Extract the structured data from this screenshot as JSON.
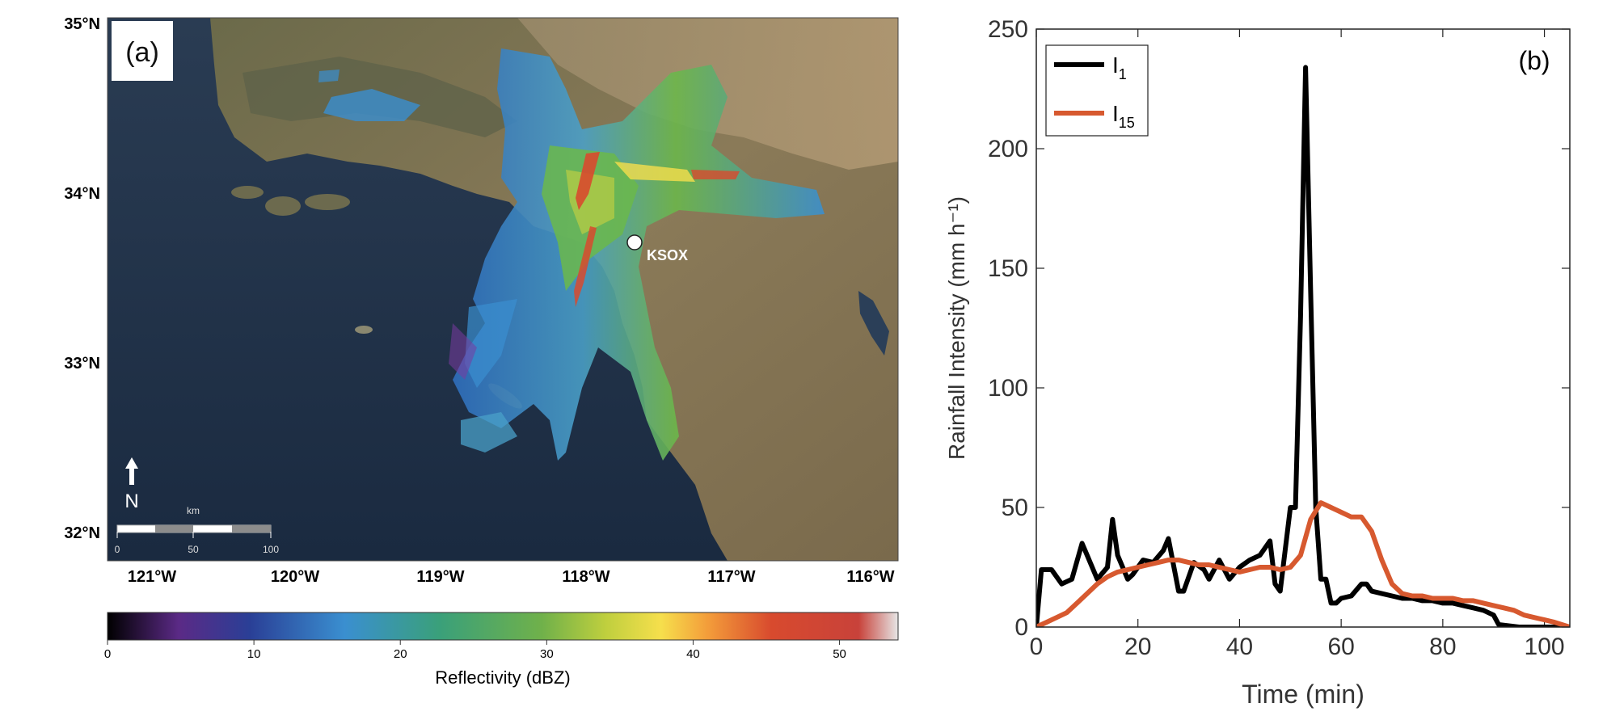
{
  "panel_a": {
    "label": "(a)",
    "lat_ticks": [
      "35°N",
      "34°N",
      "33°N",
      "32°N"
    ],
    "lon_ticks": [
      "121°W",
      "120°W",
      "119°W",
      "118°W",
      "117°W",
      "116°W"
    ],
    "station": "KSOX",
    "north_label": "N",
    "scale_bar": {
      "unit": "km",
      "ticks": [
        "0",
        "50",
        "100"
      ]
    },
    "colorbar": {
      "label": "Reflectivity (dBZ)",
      "ticks": [
        "0",
        "10",
        "20",
        "30",
        "40",
        "50"
      ],
      "range": [
        0,
        54
      ],
      "colors": [
        "#000000",
        "#5b2a86",
        "#2a3f96",
        "#3a8fd0",
        "#3aa07a",
        "#70b14a",
        "#bfcf3e",
        "#f6df4c",
        "#f39c3a",
        "#d84a2e",
        "#c8423a",
        "#e6e6e6"
      ]
    }
  },
  "chart_data": [
    {
      "type": "line",
      "title": "(b)",
      "xlabel": "Time (min)",
      "ylabel": "Rainfall Intensity (mm h⁻¹)",
      "xlim": [
        0,
        105
      ],
      "ylim": [
        0,
        250
      ],
      "xticks": [
        "0",
        "20",
        "40",
        "60",
        "80",
        "100"
      ],
      "yticks": [
        "0",
        "50",
        "100",
        "150",
        "200",
        "250"
      ],
      "grid": false,
      "legend_position": "top-left",
      "series": [
        {
          "name": "I",
          "subscript": "1",
          "color": "#000000",
          "x": [
            0,
            1,
            3,
            5,
            7,
            9,
            10,
            12,
            14,
            15,
            16,
            18,
            19,
            21,
            23,
            25,
            26,
            28,
            29,
            31,
            33,
            34,
            36,
            37,
            38,
            40,
            42,
            44,
            46,
            47,
            48,
            50,
            51,
            52,
            53,
            54,
            55,
            56,
            57,
            58,
            59,
            60,
            62,
            64,
            65,
            66,
            68,
            70,
            72,
            74,
            76,
            78,
            80,
            82,
            84,
            86,
            88,
            90,
            91,
            95,
            100,
            105
          ],
          "y": [
            0,
            24,
            24,
            18,
            20,
            35,
            30,
            20,
            25,
            45,
            30,
            20,
            22,
            28,
            27,
            32,
            37,
            15,
            15,
            27,
            24,
            20,
            28,
            24,
            20,
            25,
            28,
            30,
            36,
            18,
            15,
            50,
            50,
            130,
            234,
            140,
            50,
            20,
            20,
            10,
            10,
            12,
            13,
            18,
            18,
            15,
            14,
            13,
            12,
            12,
            11,
            11,
            10,
            10,
            9,
            8,
            7,
            5,
            1,
            0,
            0,
            0
          ]
        },
        {
          "name": "I",
          "subscript": "15",
          "color": "#d7592f",
          "x": [
            0,
            2,
            4,
            6,
            8,
            10,
            12,
            14,
            16,
            18,
            20,
            22,
            24,
            26,
            28,
            30,
            32,
            34,
            36,
            38,
            40,
            42,
            44,
            46,
            48,
            50,
            52,
            54,
            56,
            58,
            60,
            62,
            64,
            66,
            68,
            70,
            72,
            74,
            76,
            78,
            80,
            82,
            84,
            86,
            88,
            90,
            92,
            94,
            96,
            98,
            100,
            102,
            105
          ],
          "y": [
            0,
            2,
            4,
            6,
            10,
            14,
            18,
            21,
            23,
            24,
            25,
            26,
            27,
            28,
            28,
            27,
            26,
            26,
            25,
            24,
            23,
            24,
            25,
            25,
            24,
            25,
            30,
            45,
            52,
            50,
            48,
            46,
            46,
            40,
            28,
            18,
            14,
            13,
            13,
            12,
            12,
            12,
            11,
            11,
            10,
            9,
            8,
            7,
            5,
            4,
            3,
            2,
            0
          ]
        }
      ]
    }
  ]
}
